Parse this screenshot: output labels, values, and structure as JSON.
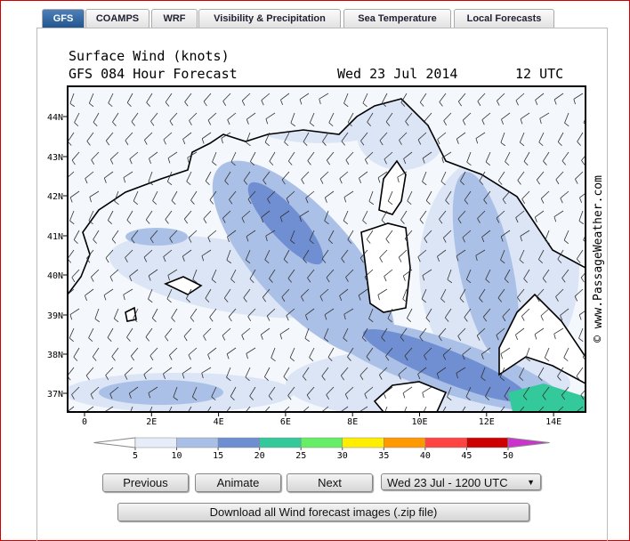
{
  "tabs": {
    "items": [
      "GFS",
      "COAMPS",
      "WRF",
      "Visibility & Precipitation",
      "Sea Temperature",
      "Local Forecasts"
    ],
    "active": 0
  },
  "map": {
    "title": "Surface Wind (knots)",
    "subtitle": "GFS 084 Hour Forecast",
    "date": "Wed 23 Jul 2014",
    "time": "12 UTC",
    "lat_labels": [
      "44N",
      "43N",
      "42N",
      "41N",
      "40N",
      "39N",
      "38N",
      "37N"
    ],
    "lon_labels": [
      "0",
      "2E",
      "4E",
      "6E",
      "8E",
      "10E",
      "12E",
      "14E"
    ],
    "copyright": "© www.PassageWeather.com"
  },
  "legend": {
    "values": [
      5,
      10,
      15,
      20,
      25,
      30,
      35,
      40,
      45,
      50
    ],
    "colors": [
      "#ffffff",
      "#e6edf8",
      "#a9bfe5",
      "#6d8fd2",
      "#33c99a",
      "#66ee66",
      "#ffee00",
      "#ff9900",
      "#ff4444",
      "#cc0000",
      "#cc33cc"
    ]
  },
  "controls": {
    "previous": "Previous",
    "animate": "Animate",
    "next": "Next",
    "select": "Wed 23 Jul - 1200 UTC",
    "download": "Download all Wind forecast images (.zip file)"
  }
}
